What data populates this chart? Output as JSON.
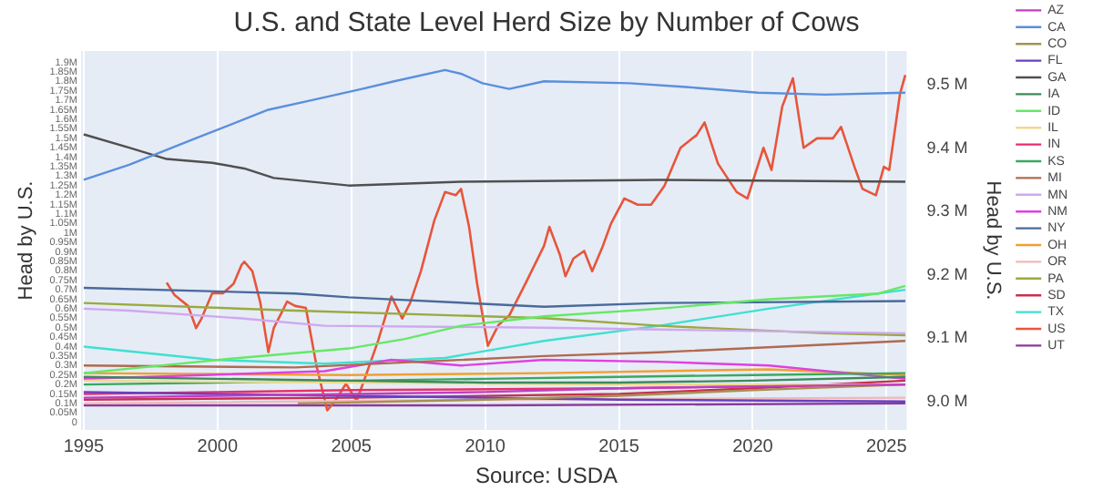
{
  "chart_data": {
    "type": "line",
    "title": "U.S. and State Level Herd Size by Number of Cows",
    "ylabel": "Head by U.S.",
    "y2label": "Head by U.S.",
    "annotations": [
      "Source: USDA"
    ],
    "xlim": [
      1994.9,
      2025.75
    ],
    "xticks": [
      1995,
      2000,
      2005,
      2010,
      2015,
      2020,
      2025
    ],
    "ylim": [
      -0.04,
      1.96
    ],
    "yticks": [
      {
        "value": 0,
        "label": "0"
      },
      {
        "value": 0.05,
        "label": "0.05M"
      },
      {
        "value": 0.1,
        "label": "0.1M"
      },
      {
        "value": 0.15,
        "label": "0.15M"
      },
      {
        "value": 0.2,
        "label": "0.2M"
      },
      {
        "value": 0.25,
        "label": "0.25M"
      },
      {
        "value": 0.3,
        "label": "0.3M"
      },
      {
        "value": 0.35,
        "label": "0.35M"
      },
      {
        "value": 0.4,
        "label": "0.4M"
      },
      {
        "value": 0.45,
        "label": "0.45M"
      },
      {
        "value": 0.5,
        "label": "0.5M"
      },
      {
        "value": 0.55,
        "label": "0.55M"
      },
      {
        "value": 0.6,
        "label": "0.6M"
      },
      {
        "value": 0.65,
        "label": "0.65M"
      },
      {
        "value": 0.7,
        "label": "0.7M"
      },
      {
        "value": 0.75,
        "label": "0.75M"
      },
      {
        "value": 0.8,
        "label": "0.8M"
      },
      {
        "value": 0.85,
        "label": "0.85M"
      },
      {
        "value": 0.9,
        "label": "0.9M"
      },
      {
        "value": 0.95,
        "label": "0.95M"
      },
      {
        "value": 1,
        "label": "1M"
      },
      {
        "value": 1.05,
        "label": "1.05M"
      },
      {
        "value": 1.1,
        "label": "1.1M"
      },
      {
        "value": 1.15,
        "label": "1.15M"
      },
      {
        "value": 1.2,
        "label": "1.2M"
      },
      {
        "value": 1.25,
        "label": "1.25M"
      },
      {
        "value": 1.3,
        "label": "1.3M"
      },
      {
        "value": 1.35,
        "label": "1.35M"
      },
      {
        "value": 1.4,
        "label": "1.4M"
      },
      {
        "value": 1.45,
        "label": "1.45M"
      },
      {
        "value": 1.5,
        "label": "1.5M"
      },
      {
        "value": 1.55,
        "label": "1.55M"
      },
      {
        "value": 1.6,
        "label": "1.6M"
      },
      {
        "value": 1.65,
        "label": "1.65M"
      },
      {
        "value": 1.7,
        "label": "1.7M"
      },
      {
        "value": 1.75,
        "label": "1.75M"
      },
      {
        "value": 1.8,
        "label": "1.8M"
      },
      {
        "value": 1.85,
        "label": "1.85M"
      },
      {
        "value": 1.9,
        "label": "1.9M"
      }
    ],
    "y2lim": [
      8.955,
      9.554
    ],
    "y2ticks": [
      {
        "value": 9.0,
        "label": "9.0 M"
      },
      {
        "value": 9.1,
        "label": "9.1 M"
      },
      {
        "value": 9.2,
        "label": "9.2 M"
      },
      {
        "value": 9.3,
        "label": "9.3 M"
      },
      {
        "value": 9.4,
        "label": "9.4 M"
      },
      {
        "value": 9.5,
        "label": "9.5 M"
      }
    ],
    "grid": "x",
    "legend": "right",
    "series": [
      {
        "name": "AZ",
        "color": "#c03fc0",
        "x": [
          1995,
          2000,
          2005,
          2010,
          2015,
          2020,
          2025.7
        ],
        "values": [
          0.13,
          0.14,
          0.15,
          0.16,
          0.18,
          0.19,
          0.2
        ]
      },
      {
        "name": "CA",
        "color": "#5b8fdc",
        "x": [
          1995,
          1996.7,
          1999.2,
          2001.9,
          2003.5,
          2005.4,
          2006.6,
          2008.5,
          2009.1,
          2009.9,
          2010.9,
          2012.2,
          2015.4,
          2017.5,
          2020.2,
          2022.7,
          2025.7
        ],
        "values": [
          1.28,
          1.36,
          1.5,
          1.65,
          1.7,
          1.76,
          1.8,
          1.86,
          1.84,
          1.79,
          1.76,
          1.8,
          1.79,
          1.77,
          1.74,
          1.73,
          1.74
        ]
      },
      {
        "name": "CO",
        "color": "#a89050",
        "x": [
          2003,
          2010,
          2015,
          2020,
          2025.7
        ],
        "values": [
          0.1,
          0.12,
          0.14,
          0.17,
          0.2
        ]
      },
      {
        "name": "FL",
        "color": "#6a3fbf",
        "x": [
          1995,
          2005,
          2015,
          2025.7
        ],
        "values": [
          0.16,
          0.14,
          0.12,
          0.11
        ]
      },
      {
        "name": "GA",
        "color": "#505050",
        "x": [
          1995,
          1996.7,
          1998.1,
          1999.8,
          2001,
          2002.1,
          2004.9,
          2009.1,
          2016.5,
          2025.7
        ],
        "values": [
          1.52,
          1.45,
          1.39,
          1.37,
          1.34,
          1.29,
          1.25,
          1.27,
          1.28,
          1.27
        ]
      },
      {
        "name": "IA",
        "color": "#3d8a5a",
        "x": [
          1995,
          2005,
          2010,
          2015,
          2020,
          2025.7
        ],
        "values": [
          0.24,
          0.22,
          0.21,
          0.21,
          0.22,
          0.24
        ]
      },
      {
        "name": "ID",
        "color": "#66e866",
        "x": [
          1995,
          2000.8,
          2004.9,
          2007,
          2009.1,
          2012.2,
          2016.5,
          2020.6,
          2024.7,
          2025.7
        ],
        "values": [
          0.26,
          0.34,
          0.39,
          0.44,
          0.51,
          0.56,
          0.6,
          0.65,
          0.68,
          0.72
        ]
      },
      {
        "name": "IL",
        "color": "#f0d890",
        "x": [
          1995,
          2005,
          2015,
          2025.7
        ],
        "values": [
          0.22,
          0.21,
          0.2,
          0.2
        ]
      },
      {
        "name": "IN",
        "color": "#e8306a",
        "x": [
          1995,
          2005,
          2015,
          2025.7
        ],
        "values": [
          0.15,
          0.17,
          0.18,
          0.2
        ]
      },
      {
        "name": "KS",
        "color": "#3aa860",
        "x": [
          1995,
          2000,
          2005,
          2010,
          2015,
          2020,
          2025.7
        ],
        "values": [
          0.2,
          0.21,
          0.22,
          0.23,
          0.24,
          0.25,
          0.26
        ]
      },
      {
        "name": "MI",
        "color": "#b06a50",
        "x": [
          1995,
          2002.9,
          2012.2,
          2016.5,
          2025.7
        ],
        "values": [
          0.3,
          0.29,
          0.35,
          0.37,
          0.43
        ]
      },
      {
        "name": "MN",
        "color": "#cfa8f0",
        "x": [
          1995,
          1996.7,
          2000.8,
          2004,
          2012.2,
          2016.5,
          2025.7
        ],
        "values": [
          0.6,
          0.59,
          0.55,
          0.51,
          0.5,
          0.49,
          0.47
        ]
      },
      {
        "name": "NM",
        "color": "#e040e0",
        "x": [
          1995,
          2004,
          2006.5,
          2009.1,
          2012.2,
          2016.5,
          2020.6,
          2025.7
        ],
        "values": [
          0.23,
          0.27,
          0.33,
          0.3,
          0.33,
          0.32,
          0.3,
          0.23
        ]
      },
      {
        "name": "NY",
        "color": "#4a6a9a",
        "x": [
          1995,
          2002.9,
          2004.9,
          2012.2,
          2016.5,
          2025.7
        ],
        "values": [
          0.71,
          0.68,
          0.66,
          0.61,
          0.63,
          0.64
        ]
      },
      {
        "name": "OH",
        "color": "#f0a030",
        "x": [
          1995,
          2004.9,
          2012.2,
          2020.6,
          2025.7
        ],
        "values": [
          0.26,
          0.25,
          0.26,
          0.28,
          0.25
        ]
      },
      {
        "name": "OR",
        "color": "#f0b8b8",
        "x": [
          1995,
          2010,
          2025.7
        ],
        "values": [
          0.1,
          0.12,
          0.13
        ]
      },
      {
        "name": "PA",
        "color": "#9aaa40",
        "x": [
          1995,
          2002.9,
          2012.2,
          2016.5,
          2022.7,
          2025.7
        ],
        "values": [
          0.63,
          0.59,
          0.55,
          0.51,
          0.47,
          0.46
        ]
      },
      {
        "name": "SD",
        "color": "#c83050",
        "x": [
          1995,
          2005,
          2015,
          2020,
          2025.7
        ],
        "values": [
          0.12,
          0.13,
          0.15,
          0.18,
          0.22
        ]
      },
      {
        "name": "TX",
        "color": "#40e0d0",
        "x": [
          1995,
          1999.8,
          2004,
          2008.5,
          2012.2,
          2016.5,
          2020.6,
          2025.7
        ],
        "values": [
          0.4,
          0.33,
          0.31,
          0.34,
          0.43,
          0.51,
          0.6,
          0.7
        ]
      },
      {
        "name": "US",
        "color": "#e8553a",
        "axis": "y2",
        "x": [
          1998.1,
          1998.4,
          1998.9,
          1999.2,
          1999.4,
          1999.8,
          2000.2,
          2000.6,
          2000.9,
          2001,
          2001.3,
          2001.6,
          2001.9,
          2002.1,
          2002.4,
          2002.6,
          2002.9,
          2003.3,
          2003.7,
          2004.1,
          2004.4,
          2004.8,
          2005.2,
          2005.5,
          2006,
          2006.5,
          2006.9,
          2007.2,
          2007.6,
          2008.1,
          2008.5,
          2008.9,
          2009.1,
          2009.4,
          2009.7,
          2010.1,
          2010.5,
          2010.9,
          2011.5,
          2012.2,
          2012.4,
          2012.8,
          2013,
          2013.3,
          2013.7,
          2014,
          2014.4,
          2014.7,
          2015.2,
          2015.7,
          2016.2,
          2016.7,
          2017.3,
          2017.9,
          2018.2,
          2018.7,
          2019.4,
          2019.8,
          2020.4,
          2020.7,
          2021.1,
          2021.5,
          2021.9,
          2022.4,
          2023,
          2023.3,
          2023.8,
          2024.1,
          2024.6,
          2024.9,
          2025.1,
          2025.5,
          2025.7
        ],
        "values": [
          9.188,
          9.168,
          9.151,
          9.116,
          9.131,
          9.171,
          9.171,
          9.186,
          9.216,
          9.221,
          9.206,
          9.156,
          9.078,
          9.116,
          9.141,
          9.158,
          9.151,
          9.148,
          9.056,
          8.986,
          9.001,
          9.028,
          9.001,
          9.036,
          9.096,
          9.166,
          9.131,
          9.156,
          9.206,
          9.286,
          9.331,
          9.326,
          9.336,
          9.276,
          9.186,
          9.088,
          9.121,
          9.136,
          9.186,
          9.246,
          9.276,
          9.231,
          9.198,
          9.226,
          9.238,
          9.206,
          9.246,
          9.281,
          9.321,
          9.311,
          9.311,
          9.341,
          9.401,
          9.421,
          9.441,
          9.376,
          9.331,
          9.321,
          9.401,
          9.366,
          9.466,
          9.511,
          9.401,
          9.416,
          9.416,
          9.434,
          9.371,
          9.336,
          9.326,
          9.371,
          9.366,
          9.486,
          9.516
        ]
      },
      {
        "name": "UT",
        "color": "#8a3a9a",
        "x": [
          1995,
          2010,
          2025.7
        ],
        "values": [
          0.09,
          0.09,
          0.1
        ]
      }
    ]
  }
}
